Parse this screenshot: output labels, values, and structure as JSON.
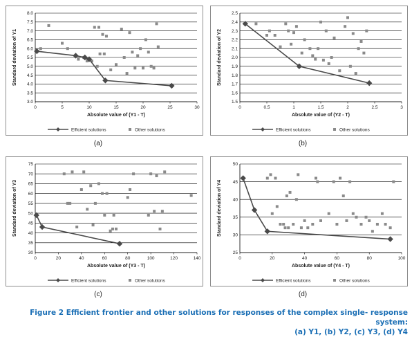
{
  "colors": {
    "efficient": "#4a4a4a",
    "other": "#8a8a8a",
    "grid": "#000000",
    "caption": "#1b6fb5"
  },
  "caption": {
    "line1": "Figure 2 Efficient frontier and other solutions for responses of the complex single- response system:",
    "line2": "(a) Y1, (b) Y2, (c) Y3, (d) Y4"
  },
  "chart_data": [
    {
      "type": "scatter",
      "panel_label": "(a)",
      "xlabel": "Absolute value of  (Y1 - T)",
      "ylabel": "Standard deviation of Y1",
      "xlim": [
        0,
        30
      ],
      "ylim": [
        3.0,
        8.0
      ],
      "xticks": [
        "0",
        "5",
        "10",
        "15",
        "20",
        "25",
        "30"
      ],
      "yticks": [
        "3.0",
        "3.5",
        "4.0",
        "4.5",
        "5.0",
        "5.5",
        "6.0",
        "6.5",
        "7.0",
        "7.5",
        "8.0"
      ],
      "grid": true,
      "legend": {
        "position": "bottom",
        "efficient": "Efficient solutions",
        "other": "Other solutions"
      },
      "series": [
        {
          "name": "Efficient solutions",
          "kind": "line",
          "x": [
            0.3,
            7.5,
            9.2,
            10,
            13,
            25.3
          ],
          "y": [
            5.85,
            5.6,
            5.5,
            5.4,
            4.2,
            3.9
          ]
        },
        {
          "name": "Other solutions",
          "kind": "scatter",
          "x": [
            1,
            2.5,
            5,
            6,
            8,
            9,
            9.6,
            10.5,
            11,
            11.5,
            11.8,
            12,
            12.5,
            12.8,
            13.2,
            14,
            15,
            16,
            16.5,
            17,
            17.5,
            18,
            18.5,
            19,
            19.5,
            20,
            20.5,
            21,
            21.5,
            22,
            22.5,
            22.8
          ],
          "y": [
            6.0,
            7.3,
            6.3,
            6.0,
            5.4,
            5.5,
            5.3,
            5.3,
            7.2,
            5.0,
            7.2,
            5.7,
            6.8,
            5.7,
            6.7,
            4.8,
            5.1,
            7.1,
            5.5,
            4.6,
            6.9,
            5.8,
            4.9,
            5.6,
            6.0,
            4.9,
            6.5,
            5.8,
            5.0,
            4.9,
            7.4,
            6.1
          ]
        }
      ]
    },
    {
      "type": "scatter",
      "panel_label": "(b)",
      "xlabel": "Absolute value of  (Y2 - T)",
      "ylabel": "Standard deviation of Y2",
      "xlim": [
        0,
        3
      ],
      "ylim": [
        1.5,
        2.5
      ],
      "xticks": [
        "0",
        "0.5",
        "1",
        "1.5",
        "2",
        "2.5",
        "3"
      ],
      "yticks": [
        "1.5",
        "1.6",
        "1.7",
        "1.8",
        "1.9",
        "2.0",
        "2.1",
        "2.2",
        "2.3",
        "2.4",
        "2.5"
      ],
      "grid": true,
      "legend": {
        "position": "bottom",
        "efficient": "Efficient solutions",
        "other": "Other solutions"
      },
      "series": [
        {
          "name": "Efficient solutions",
          "kind": "line",
          "x": [
            0.1,
            1.1,
            2.4
          ],
          "y": [
            2.38,
            1.9,
            1.71
          ]
        },
        {
          "name": "Other solutions",
          "kind": "scatter",
          "x": [
            0.3,
            0.5,
            0.55,
            0.65,
            0.75,
            0.85,
            0.9,
            0.95,
            1.0,
            1.05,
            1.15,
            1.2,
            1.3,
            1.35,
            1.4,
            1.45,
            1.5,
            1.55,
            1.6,
            1.65,
            1.7,
            1.75,
            1.85,
            1.95,
            2.0,
            2.05,
            2.1,
            2.15,
            2.2,
            2.25,
            2.3,
            2.35
          ],
          "y": [
            2.38,
            2.25,
            2.3,
            2.25,
            2.12,
            2.38,
            2.3,
            2.15,
            2.28,
            2.35,
            2.05,
            2.2,
            2.1,
            2.02,
            1.98,
            2.1,
            2.4,
            1.97,
            2.3,
            1.93,
            2.0,
            2.22,
            1.85,
            2.35,
            2.45,
            1.9,
            2.27,
            1.82,
            2.1,
            2.18,
            2.05,
            2.3
          ]
        }
      ]
    },
    {
      "type": "scatter",
      "panel_label": "(c)",
      "xlabel": "Absolute value of  (Y3 - T)",
      "ylabel": "Standard deviation of Y3",
      "xlim": [
        0,
        140
      ],
      "ylim": [
        30,
        75
      ],
      "xticks": [
        "0",
        "20",
        "40",
        "60",
        "80",
        "100",
        "120",
        "140"
      ],
      "yticks": [
        "30",
        "35",
        "40",
        "45",
        "50",
        "55",
        "60",
        "65",
        "70",
        "75"
      ],
      "grid": true,
      "legend": {
        "position": "bottom",
        "efficient": "Efficient solutions",
        "other": "Other solutions"
      },
      "series": [
        {
          "name": "Efficient solutions",
          "kind": "line",
          "x": [
            1,
            6,
            73
          ],
          "y": [
            49,
            43,
            34.5
          ]
        },
        {
          "name": "Other solutions",
          "kind": "scatter",
          "x": [
            25,
            28,
            30,
            32,
            36,
            40,
            42,
            45,
            48,
            50,
            52,
            55,
            58,
            60,
            62,
            65,
            67,
            68,
            70,
            80,
            82,
            85,
            98,
            100,
            103,
            105,
            108,
            110,
            112,
            135
          ],
          "y": [
            70,
            55,
            55,
            71,
            43,
            62,
            71,
            52,
            64,
            44,
            55,
            65,
            60,
            49,
            60,
            41,
            42,
            49,
            42,
            58,
            62,
            70,
            49,
            70,
            51,
            69,
            42,
            51,
            71,
            59
          ]
        }
      ]
    },
    {
      "type": "scatter",
      "panel_label": "(d)",
      "xlabel": "Absolute value of  (Y4 - T)",
      "ylabel": "Standard deviation of Y4",
      "xlim": [
        0,
        100
      ],
      "ylim": [
        25,
        50
      ],
      "xticks": [
        "0",
        "20",
        "40",
        "60",
        "80",
        "100"
      ],
      "yticks": [
        "25",
        "30",
        "35",
        "40",
        "45",
        "50"
      ],
      "grid": true,
      "legend": {
        "position": "bottom",
        "efficient": "Efficient solutions",
        "other": "Other solutions"
      },
      "series": [
        {
          "name": "Efficient solutions",
          "kind": "line",
          "x": [
            2,
            9,
            17,
            93
          ],
          "y": [
            46,
            37,
            31,
            28.8
          ]
        },
        {
          "name": "Other solutions",
          "kind": "scatter",
          "x": [
            17,
            19,
            20,
            22,
            23,
            25,
            27,
            28,
            29,
            30,
            31,
            33,
            35,
            36,
            38,
            40,
            42,
            45,
            47,
            48,
            50,
            55,
            58,
            60,
            62,
            64,
            66,
            68,
            70,
            72,
            75,
            78,
            80,
            82,
            85,
            88,
            90,
            93,
            95
          ],
          "y": [
            46,
            47,
            36,
            46,
            38,
            33,
            33,
            32,
            41,
            32,
            42,
            33,
            40,
            47,
            32,
            34,
            32,
            33,
            46,
            45,
            34,
            36,
            45,
            33,
            46,
            41,
            34,
            45,
            36,
            35,
            33,
            35,
            34,
            31,
            33,
            36,
            33,
            32,
            45
          ]
        }
      ]
    }
  ]
}
